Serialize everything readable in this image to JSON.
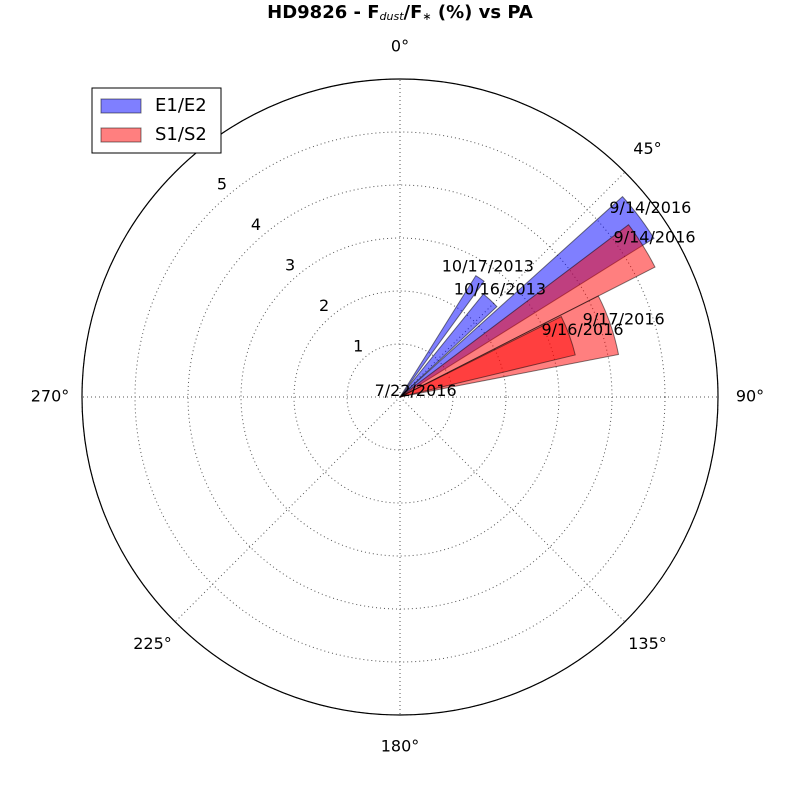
{
  "chart_data": {
    "type": "polar_bar",
    "title": [
      "HD9826 - F",
      "dust",
      "/F",
      "∗",
      " (%) vs PA"
    ],
    "rlim": [
      0,
      6
    ],
    "rticks": [
      1,
      2,
      3,
      4,
      5,
      6
    ],
    "thetaticks": [
      {
        "value": 0,
        "label": "0°"
      },
      {
        "value": 45,
        "label": "45°"
      },
      {
        "value": 90,
        "label": "90°"
      },
      {
        "value": 135,
        "label": "135°"
      },
      {
        "value": 180,
        "label": "180°"
      },
      {
        "value": 225,
        "label": "225°"
      },
      {
        "value": 270,
        "label": "270°"
      }
    ],
    "grid": true,
    "legend": "upper left",
    "series": [
      {
        "name": "E1/E2",
        "color": "#0000ff",
        "labels": [
          "10/17/2013",
          "10/16/2013",
          "9/14/2016"
        ],
        "theta": [
          34,
          43,
          53
        ],
        "widths": [
          4,
          8,
          10
        ],
        "values": [
          2.7,
          2.5,
          5.65
        ]
      },
      {
        "name": "S1/S2",
        "color": "#ff0000",
        "labels": [
          "9/14/2016",
          "9/17/2016",
          "9/16/2016",
          "7/22/2016"
        ],
        "theta": [
          58,
          71,
          70,
          70
        ],
        "widths": [
          10,
          16,
          13,
          10
        ],
        "values": [
          5.4,
          4.2,
          3.4,
          0.05
        ]
      }
    ]
  }
}
